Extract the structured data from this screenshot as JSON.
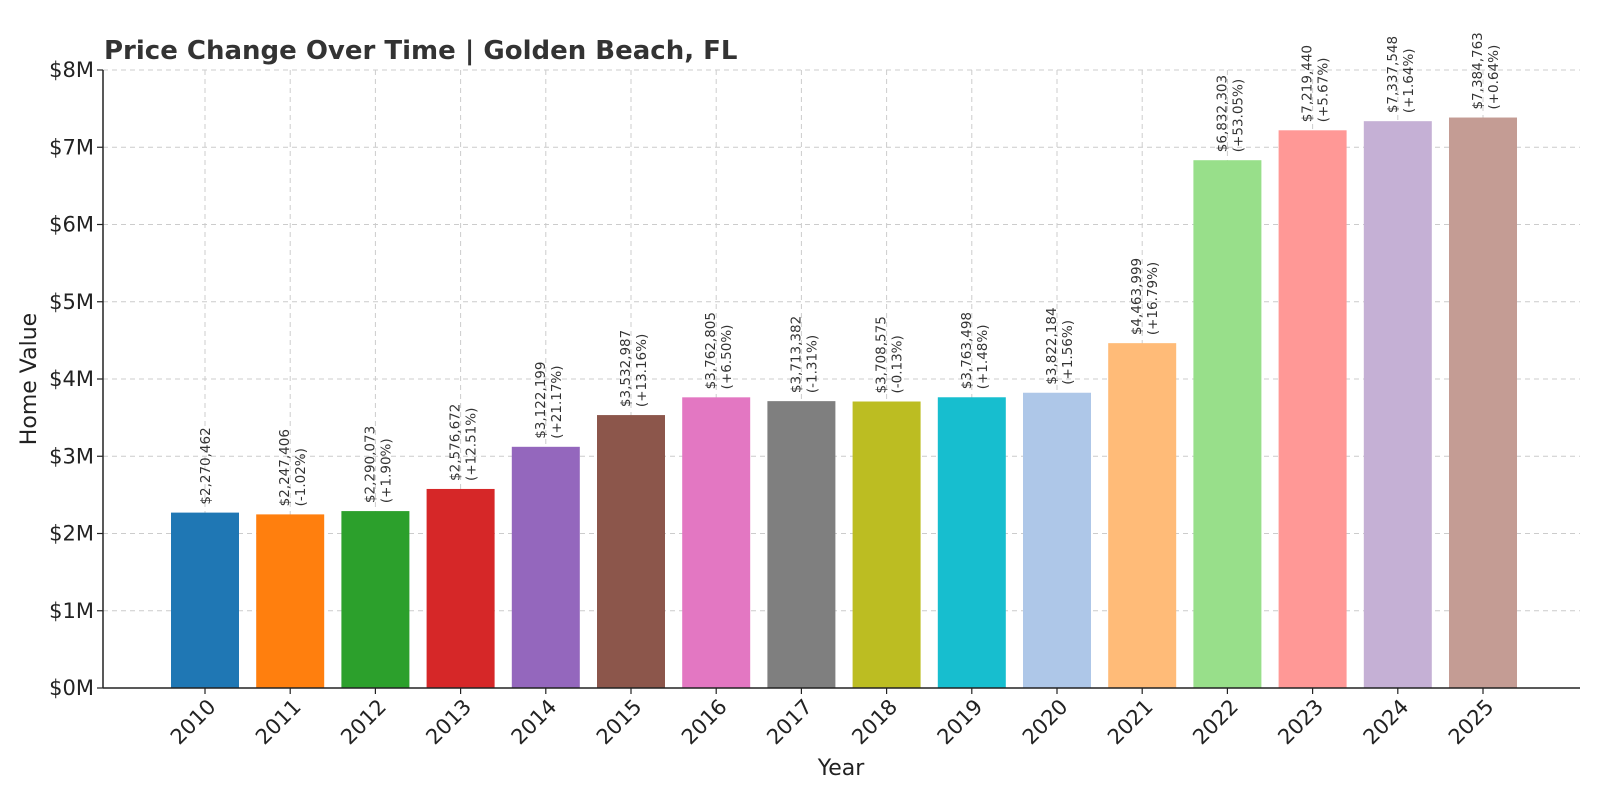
{
  "chart_data": {
    "type": "bar",
    "title": "Price Change Over Time | Golden Beach, FL",
    "xlabel": "Year",
    "ylabel": "Home Value",
    "ylim": [
      0,
      8000000
    ],
    "yticks": [
      0,
      1000000,
      2000000,
      3000000,
      4000000,
      5000000,
      6000000,
      7000000,
      8000000
    ],
    "ytick_labels": [
      "$0M",
      "$1M",
      "$2M",
      "$3M",
      "$4M",
      "$5M",
      "$6M",
      "$7M",
      "$8M"
    ],
    "grid": true,
    "categories": [
      "2010",
      "2011",
      "2012",
      "2013",
      "2014",
      "2015",
      "2016",
      "2017",
      "2018",
      "2019",
      "2020",
      "2021",
      "2022",
      "2023",
      "2024",
      "2025"
    ],
    "values": [
      2270462,
      2247406,
      2290073,
      2576672,
      3122199,
      3532987,
      3762805,
      3713382,
      3708575,
      3763498,
      3822184,
      4463999,
      6832303,
      7219440,
      7337548,
      7384763
    ],
    "value_labels": [
      "$2,270,462",
      "$2,247,406",
      "$2,290,073",
      "$2,576,672",
      "$3,122,199",
      "$3,532,987",
      "$3,762,805",
      "$3,713,382",
      "$3,708,575",
      "$3,763,498",
      "$3,822,184",
      "$4,463,999",
      "$6,832,303",
      "$7,219,440",
      "$7,337,548",
      "$7,384,763"
    ],
    "change_labels": [
      "",
      "(-1.02%)",
      "(+1.90%)",
      "(+12.51%)",
      "(+21.17%)",
      "(+13.16%)",
      "(+6.50%)",
      "(-1.31%)",
      "(-0.13%)",
      "(+1.48%)",
      "(+1.56%)",
      "(+16.79%)",
      "(+53.05%)",
      "(+5.67%)",
      "(+1.64%)",
      "(+0.64%)"
    ],
    "colors": [
      "#1f77b4",
      "#ff7f0e",
      "#2ca02c",
      "#d62728",
      "#9467bd",
      "#8c564b",
      "#e377c2",
      "#7f7f7f",
      "#bcbd22",
      "#17becf",
      "#aec7e8",
      "#ffbb78",
      "#98df8a",
      "#ff9896",
      "#c5b0d5",
      "#c49c94"
    ]
  }
}
